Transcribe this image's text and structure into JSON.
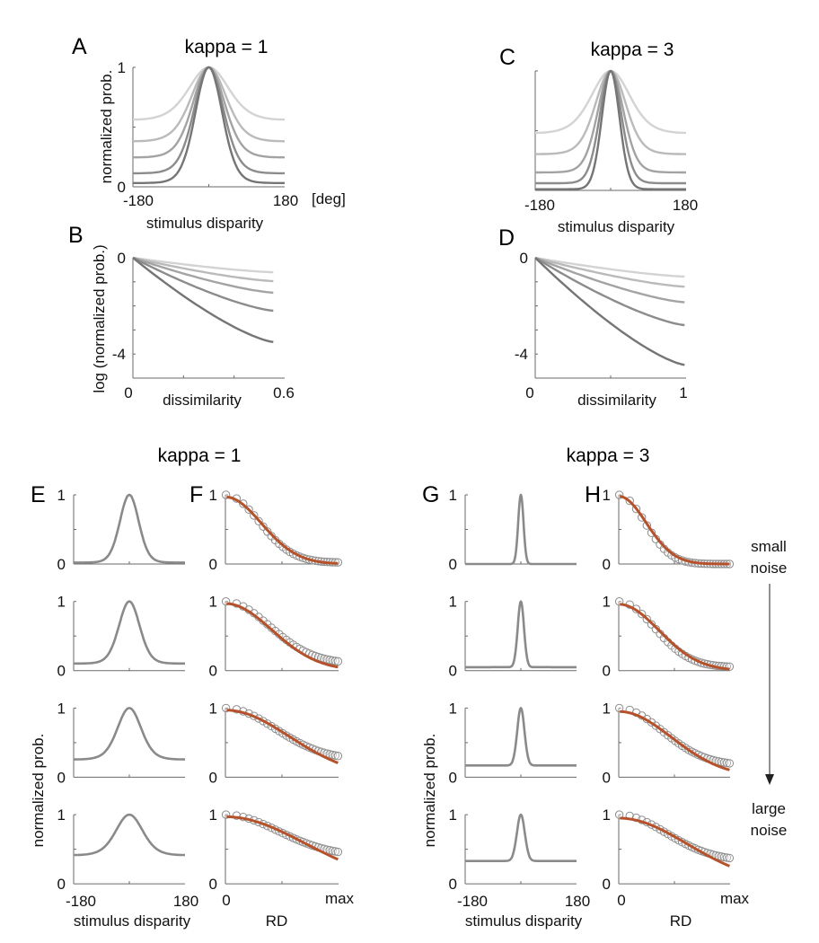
{
  "letters": {
    "A": "A",
    "B": "B",
    "C": "C",
    "D": "D",
    "E": "E",
    "F": "F",
    "G": "G",
    "H": "H"
  },
  "annotations": {
    "small": [
      "small",
      "noise"
    ],
    "large": [
      "large",
      "noise"
    ]
  },
  "colors": {
    "axis": "#6a6a6a",
    "curve": "#8a8a8a",
    "fit": "#b5522b",
    "circle": "#8c8c8c"
  },
  "chart_data": [
    {
      "panel": "A",
      "type": "line",
      "title": "kappa = 1",
      "xlabel": "stimulus disparity",
      "xunit": "[deg]",
      "ylabel": "normalized prob.",
      "xlim": [
        -180,
        180
      ],
      "ylim": [
        0,
        1
      ],
      "xticklabels": [
        "-180",
        "180"
      ],
      "yticklabels": [
        "0",
        "1"
      ],
      "series": [
        {
          "baseline": 0.54,
          "sharpness": 1.5,
          "color": "#d3d3d3"
        },
        {
          "baseline": 0.37,
          "sharpness": 2.0,
          "color": "#bababa"
        },
        {
          "baseline": 0.24,
          "sharpness": 2.4,
          "color": "#a3a3a3"
        },
        {
          "baseline": 0.11,
          "sharpness": 2.8,
          "color": "#8c8c8c"
        },
        {
          "baseline": 0.03,
          "sharpness": 3.3,
          "color": "#757575"
        }
      ]
    },
    {
      "panel": "B",
      "type": "line",
      "xlabel": "dissimilarity",
      "ylabel": "log (normalized prob.)",
      "xlim": [
        0,
        0.6
      ],
      "ylim": [
        -5,
        0
      ],
      "xticklabels": [
        "0",
        "0.6"
      ],
      "yticklabels": [
        "0",
        "-4"
      ],
      "series": [
        {
          "end_x": 0.555,
          "end_y": -0.6,
          "color": "#d3d3d3"
        },
        {
          "end_x": 0.555,
          "end_y": -0.97,
          "color": "#bababa"
        },
        {
          "end_x": 0.555,
          "end_y": -1.45,
          "color": "#a3a3a3"
        },
        {
          "end_x": 0.555,
          "end_y": -2.2,
          "color": "#8c8c8c"
        },
        {
          "end_x": 0.555,
          "end_y": -3.5,
          "color": "#757575"
        }
      ]
    },
    {
      "panel": "C",
      "type": "line",
      "title": "kappa = 3",
      "xlabel": "stimulus disparity",
      "xlim": [
        -180,
        180
      ],
      "ylim": [
        0,
        1
      ],
      "xticklabels": [
        "-180",
        "180"
      ],
      "series": [
        {
          "baseline": 0.46,
          "sharpness": 1.6,
          "color": "#d3d3d3"
        },
        {
          "baseline": 0.3,
          "sharpness": 2.6,
          "color": "#bababa"
        },
        {
          "baseline": 0.15,
          "sharpness": 3.6,
          "color": "#a3a3a3"
        },
        {
          "baseline": 0.06,
          "sharpness": 5.0,
          "color": "#8c8c8c"
        },
        {
          "baseline": 0.01,
          "sharpness": 7.4,
          "color": "#757575"
        }
      ]
    },
    {
      "panel": "D",
      "type": "line",
      "xlabel": "dissimilarity",
      "xlim": [
        0,
        1
      ],
      "ylim": [
        -5,
        0
      ],
      "xticklabels": [
        "0",
        "1"
      ],
      "yticklabels": [
        "0",
        "-4"
      ],
      "series": [
        {
          "end_x": 0.99,
          "end_y": -0.78,
          "color": "#d3d3d3"
        },
        {
          "end_x": 0.99,
          "end_y": -1.2,
          "color": "#bababa"
        },
        {
          "end_x": 0.99,
          "end_y": -1.85,
          "color": "#a3a3a3"
        },
        {
          "end_x": 0.99,
          "end_y": -2.8,
          "color": "#8c8c8c"
        },
        {
          "end_x": 0.99,
          "end_y": -4.45,
          "color": "#757575"
        }
      ]
    },
    {
      "panel": "E",
      "type": "line",
      "group_title": "kappa = 1",
      "xlabel": "stimulus disparity",
      "ylabel": "normalized prob.",
      "xlim": [
        -180,
        180
      ],
      "ylim": [
        0,
        1
      ],
      "xticklabels": [
        "-180",
        "180"
      ],
      "yticklabels": [
        "0",
        "1"
      ],
      "rows": [
        {
          "baseline": 0.02,
          "sharpness": 3.6
        },
        {
          "baseline": 0.1,
          "sharpness": 3.0
        },
        {
          "baseline": 0.25,
          "sharpness": 2.3
        },
        {
          "baseline": 0.4,
          "sharpness": 1.8
        }
      ]
    },
    {
      "panel": "F",
      "type": "scatter+line",
      "xlabel": "RD",
      "xlim": [
        0,
        1
      ],
      "ylim": [
        0,
        1
      ],
      "xticklabels": [
        "0",
        "max"
      ],
      "yticklabels": [
        "0",
        "1"
      ],
      "rows": [
        {
          "data_floor": 0.02,
          "data_scale": 0.42,
          "fit_amp": 0.97,
          "fit_scale": 0.45
        },
        {
          "data_floor": 0.1,
          "data_scale": 0.55,
          "fit_amp": 0.97,
          "fit_scale": 0.58
        },
        {
          "data_floor": 0.25,
          "data_scale": 0.62,
          "fit_amp": 0.97,
          "fit_scale": 0.8
        },
        {
          "data_floor": 0.4,
          "data_scale": 0.66,
          "fit_amp": 0.97,
          "fit_scale": 0.99
        }
      ]
    },
    {
      "panel": "G",
      "type": "line",
      "group_title": "kappa = 3",
      "xlabel": "stimulus disparity",
      "ylabel": "normalized prob.",
      "xlim": [
        -180,
        180
      ],
      "ylim": [
        0,
        1
      ],
      "xticklabels": [
        "-180",
        "180"
      ],
      "yticklabels": [
        "0",
        "1"
      ],
      "rows": [
        {
          "baseline": 0.0,
          "sharpness": 45
        },
        {
          "baseline": 0.05,
          "sharpness": 32
        },
        {
          "baseline": 0.17,
          "sharpness": 24
        },
        {
          "baseline": 0.33,
          "sharpness": 20
        }
      ]
    },
    {
      "panel": "H",
      "type": "scatter+line",
      "xlabel": "RD",
      "xlim": [
        0,
        1
      ],
      "ylim": [
        0,
        1
      ],
      "xticklabels": [
        "0",
        "max"
      ],
      "yticklabels": [
        "0",
        "1"
      ],
      "rows": [
        {
          "data_floor": 0.0,
          "data_scale": 0.33,
          "fit_amp": 0.98,
          "fit_scale": 0.35
        },
        {
          "data_floor": 0.05,
          "data_scale": 0.45,
          "fit_amp": 0.96,
          "fit_scale": 0.51
        },
        {
          "data_floor": 0.17,
          "data_scale": 0.55,
          "fit_amp": 0.95,
          "fit_scale": 0.67
        },
        {
          "data_floor": 0.33,
          "data_scale": 0.6,
          "fit_amp": 0.95,
          "fit_scale": 0.87
        }
      ]
    }
  ]
}
